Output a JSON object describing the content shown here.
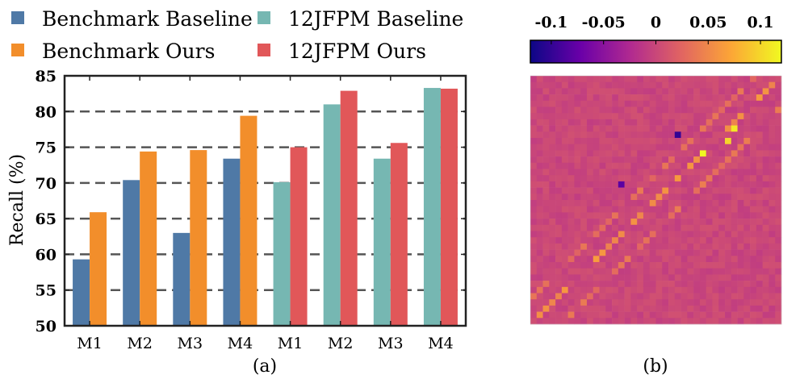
{
  "chart_data": [
    {
      "type": "bar",
      "caption": "(a)",
      "ylabel": "Recall (%)",
      "ylim": [
        50,
        85
      ],
      "yticks": [
        "50",
        "55",
        "60",
        "65",
        "70",
        "75",
        "80",
        "85"
      ],
      "grid": "horizontal dashed",
      "legend_position": "top",
      "categories": [
        "M1",
        "M2",
        "M3",
        "M4",
        "M1",
        "M2",
        "M3",
        "M4"
      ],
      "series": [
        {
          "name": "Benchmark Baseline",
          "color": "#4f79a6",
          "values": [
            59.3,
            70.4,
            63.0,
            73.4,
            null,
            null,
            null,
            null
          ]
        },
        {
          "name": "Benchmark Ours",
          "color": "#f28e2b",
          "values": [
            65.9,
            74.4,
            74.6,
            79.4,
            null,
            null,
            null,
            null
          ]
        },
        {
          "name": "12JFPM Baseline",
          "color": "#76b7b2",
          "values": [
            null,
            null,
            null,
            null,
            70.1,
            81.0,
            73.4,
            83.3
          ]
        },
        {
          "name": "12JFPM Ours",
          "color": "#e15759",
          "values": [
            null,
            null,
            null,
            null,
            75.0,
            82.9,
            75.6,
            83.2
          ]
        }
      ]
    },
    {
      "type": "heatmap",
      "caption": "(b)",
      "colorbar": {
        "range": [
          -0.12,
          0.12
        ],
        "ticks": [
          "-0.1",
          "-0.05",
          "0",
          "0.05",
          "0.1"
        ],
        "tick_values": [
          -0.1,
          -0.05,
          0,
          0.05,
          0.1
        ],
        "colors": [
          "#0c0786",
          "#6a00a8",
          "#b12a90",
          "#e16462",
          "#fca636",
          "#f0f921"
        ]
      },
      "size": 40,
      "background_value": 0.0,
      "noise_amplitude": 0.008,
      "bands": [
        {
          "offset": 0,
          "value": 0.055
        },
        {
          "offset": 4,
          "value": 0.03
        },
        {
          "offset": -5,
          "value": 0.035
        }
      ],
      "hot_cells": [
        {
          "row": 12,
          "col": 27,
          "value": 0.12
        },
        {
          "row": 8,
          "col": 32,
          "value": 0.11
        },
        {
          "row": 10,
          "col": 31,
          "value": 0.1
        },
        {
          "row": 9,
          "col": 23,
          "value": -0.1
        },
        {
          "row": 17,
          "col": 14,
          "value": -0.08
        }
      ]
    }
  ]
}
